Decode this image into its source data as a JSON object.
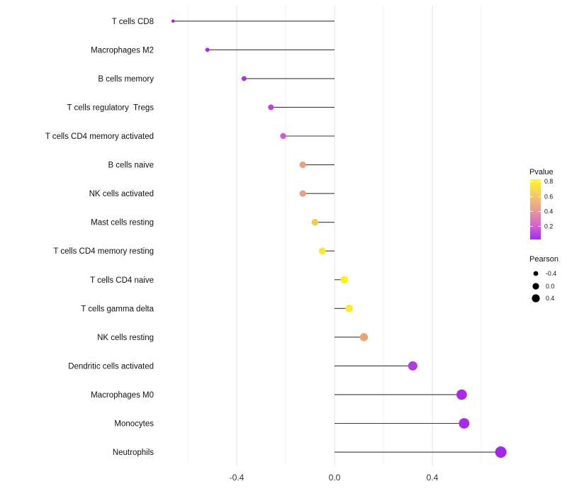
{
  "chart_data": {
    "type": "lollipop",
    "orientation": "horizontal",
    "title": "",
    "xlabel": "",
    "ylabel": "",
    "xlim": [
      -0.72,
      0.74
    ],
    "x_ticks": [
      -0.4,
      0.0,
      0.4
    ],
    "x_tick_labels": [
      "-0.4",
      "0.0",
      "0.4"
    ],
    "x_gridlines_minor": [
      -0.6,
      -0.2,
      0.2,
      0.6
    ],
    "x_gridlines_major": [
      -0.4,
      0.0,
      0.4
    ],
    "grid": "vertical-only",
    "panel_background": "#ffffff",
    "stem_color": "#3a3a3a",
    "points": [
      {
        "label": "T cells CD8",
        "pearson": -0.66,
        "color": "#A228E0"
      },
      {
        "label": "Macrophages M2",
        "pearson": -0.52,
        "color": "#A52BE0"
      },
      {
        "label": "B cells memory",
        "pearson": -0.37,
        "color": "#AC39D6"
      },
      {
        "label": "T cells regulatory  Tregs",
        "pearson": -0.26,
        "color": "#B846D2"
      },
      {
        "label": "T cells CD4 memory activated",
        "pearson": -0.21,
        "color": "#C75FCC"
      },
      {
        "label": "B cells naive",
        "pearson": -0.13,
        "color": "#E8A184"
      },
      {
        "label": "NK cells activated",
        "pearson": -0.13,
        "color": "#E8A086"
      },
      {
        "label": "Mast cells resting",
        "pearson": -0.08,
        "color": "#F0CB5A"
      },
      {
        "label": "T cells CD4 memory resting",
        "pearson": -0.05,
        "color": "#F6E83C"
      },
      {
        "label": "T cells CD4 naive",
        "pearson": 0.04,
        "color": "#FAF21D"
      },
      {
        "label": "T cells gamma delta",
        "pearson": 0.06,
        "color": "#F7EA3A"
      },
      {
        "label": "NK cells resting",
        "pearson": 0.12,
        "color": "#EBA472"
      },
      {
        "label": "Dendritic cells activated",
        "pearson": 0.32,
        "color": "#B23BE0"
      },
      {
        "label": "Macrophages M0",
        "pearson": 0.52,
        "color": "#A82BE5"
      },
      {
        "label": "Monocytes",
        "pearson": 0.53,
        "color": "#A82BE5"
      },
      {
        "label": "Neutrophils",
        "pearson": 0.68,
        "color": "#A527E7"
      }
    ],
    "legend_pvalue": {
      "title": "Pvalue",
      "tick_labels": [
        "0.8",
        "0.6",
        "0.4",
        "0.2"
      ],
      "gradient_top_to_bottom": [
        "#FDF62B",
        "#F3CC68",
        "#E79F96",
        "#D06BC7",
        "#A62BF0"
      ]
    },
    "legend_pearson": {
      "title": "Pearson",
      "dot_color": "#000000",
      "entries": [
        {
          "label": "-0.4",
          "r": 3.4
        },
        {
          "label": "0.0",
          "r": 4.6
        },
        {
          "label": "0.4",
          "r": 5.6
        }
      ]
    }
  }
}
